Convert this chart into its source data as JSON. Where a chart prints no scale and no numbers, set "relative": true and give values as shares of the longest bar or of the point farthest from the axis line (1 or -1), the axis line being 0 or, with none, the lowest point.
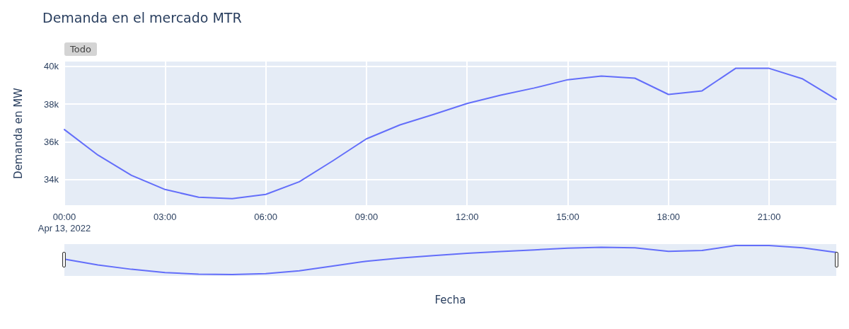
{
  "chart_data": [
    {
      "type": "line",
      "title": "Demanda en el mercado MTR",
      "ylabel": "Demanda en MW",
      "annotations": [
        "Todo"
      ],
      "x": [
        "2022-04-13T00:00",
        "2022-04-13T01:00",
        "2022-04-13T02:00",
        "2022-04-13T03:00",
        "2022-04-13T04:00",
        "2022-04-13T05:00",
        "2022-04-13T06:00",
        "2022-04-13T07:00",
        "2022-04-13T08:00",
        "2022-04-13T09:00",
        "2022-04-13T10:00",
        "2022-04-13T11:00",
        "2022-04-13T12:00",
        "2022-04-13T13:00",
        "2022-04-13T14:00",
        "2022-04-13T15:00",
        "2022-04-13T16:00",
        "2022-04-13T17:00",
        "2022-04-13T18:00",
        "2022-04-13T19:00",
        "2022-04-13T20:00",
        "2022-04-13T21:00",
        "2022-04-13T22:00",
        "2022-04-13T23:00"
      ],
      "series": [
        {
          "color": "#636efa",
          "values": [
            36650,
            35300,
            34230,
            33480,
            33070,
            33000,
            33220,
            33890,
            35000,
            36160,
            36900,
            37450,
            38030,
            38470,
            38850,
            39290,
            39480,
            39370,
            38510,
            38700,
            39890,
            39890,
            39330,
            38250
          ]
        }
      ],
      "xlim": [
        "2022-04-13T00:00",
        "2022-04-13T23:00"
      ],
      "xticks": [
        {
          "value": "2022-04-13T00:00",
          "label": "00:00\nApr 13, 2022"
        },
        {
          "value": "2022-04-13T03:00",
          "label": "03:00"
        },
        {
          "value": "2022-04-13T06:00",
          "label": "06:00"
        },
        {
          "value": "2022-04-13T09:00",
          "label": "09:00"
        },
        {
          "value": "2022-04-13T12:00",
          "label": "12:00"
        },
        {
          "value": "2022-04-13T15:00",
          "label": "15:00"
        },
        {
          "value": "2022-04-13T18:00",
          "label": "18:00"
        },
        {
          "value": "2022-04-13T21:00",
          "label": "21:00"
        }
      ],
      "ylim": [
        32650,
        40250
      ],
      "yticks": [
        {
          "value": 34000,
          "label": "34k"
        },
        {
          "value": 36000,
          "label": "36k"
        },
        {
          "value": 38000,
          "label": "38k"
        },
        {
          "value": 40000,
          "label": "40k"
        }
      ],
      "grid": true,
      "marker": "none",
      "line_style": "solid"
    },
    {
      "type": "line",
      "xlabel": "Fecha",
      "relative": true,
      "x": [
        "2022-04-13T00:00",
        "2022-04-13T01:00",
        "2022-04-13T02:00",
        "2022-04-13T03:00",
        "2022-04-13T04:00",
        "2022-04-13T05:00",
        "2022-04-13T06:00",
        "2022-04-13T07:00",
        "2022-04-13T08:00",
        "2022-04-13T09:00",
        "2022-04-13T10:00",
        "2022-04-13T11:00",
        "2022-04-13T12:00",
        "2022-04-13T13:00",
        "2022-04-13T14:00",
        "2022-04-13T15:00",
        "2022-04-13T16:00",
        "2022-04-13T17:00",
        "2022-04-13T18:00",
        "2022-04-13T19:00",
        "2022-04-13T20:00",
        "2022-04-13T21:00",
        "2022-04-13T22:00",
        "2022-04-13T23:00"
      ],
      "series": [
        {
          "color": "#636efa",
          "values": [
            0.53,
            0.33,
            0.18,
            0.07,
            0.01,
            0,
            0.03,
            0.13,
            0.29,
            0.46,
            0.57,
            0.65,
            0.73,
            0.79,
            0.85,
            0.91,
            0.94,
            0.92,
            0.8,
            0.83,
            1,
            1,
            0.92,
            0.76
          ]
        }
      ],
      "xlim": [
        "2022-04-13T00:00",
        "2022-04-13T23:00"
      ],
      "marker": "none",
      "line_style": "solid"
    }
  ]
}
